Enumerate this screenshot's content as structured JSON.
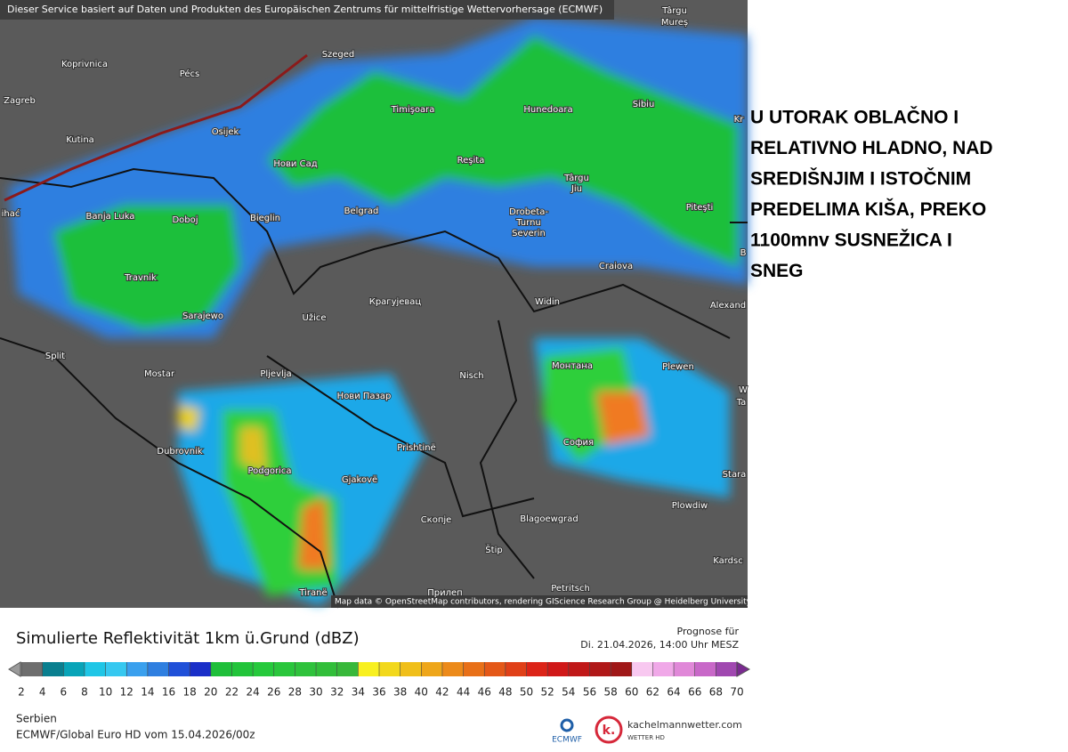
{
  "header": {
    "attribution": "Dieser Service basiert auf Daten und Produkten des Europäischen Zentrums für mittelfristige Wettervorhersage (ECMWF)"
  },
  "map": {
    "credit": "Map data © OpenStreetMap contributors, rendering GIScience Research Group @ Heidelberg University",
    "labels": [
      "Koprivnica",
      "Pécs",
      "Szeged",
      "Târgu",
      "Mureș",
      "Zagreb",
      "Kutina",
      "Osijek",
      "Нови Сад",
      "Timişoara",
      "Hunedoara",
      "Sibiu",
      "Kr",
      "Reşita",
      "Târgu",
      "Jiu",
      "Piteşti",
      "ihać",
      "Banja Luka",
      "Doboj",
      "Bieglin",
      "Belgrad",
      "Drobeta-",
      "Turnu",
      "Severin",
      "Craiova",
      "B",
      "Travnik",
      "Sarajewo",
      "Užice",
      "Крагујевац",
      "Widin",
      "Alexand",
      "Split",
      "Mostar",
      "Pljevlja",
      "Nisch",
      "Монтана",
      "Plewen",
      "W",
      "Ta",
      "Нови Пазар",
      "Dubrovnik",
      "Prishtinë",
      "София",
      "Stara",
      "Podgorica",
      "Gjakovë",
      "Plowdiw",
      "Скопје",
      "Blagoewgrad",
      "Štip",
      "Kardsc",
      "Tiranë",
      "Прилеп",
      "Petritsch"
    ]
  },
  "caption": {
    "lines": [
      "U UTORAK OBLAČNO I",
      "RELATIVNO HLADNO, NAD",
      "SREDIŠNJIM I ISTOČNIM",
      "PREDELIMA KIŠA, PREKO",
      "1100mnv SUSNEŽICA I",
      "SNEG"
    ]
  },
  "legend": {
    "title": "Simulierte Reflektivität 1km ü.Grund (dBZ)",
    "forecast_label": "Prognose für",
    "forecast_time": "Di. 21.04.2026, 14:00 Uhr MESZ",
    "scale": [
      2,
      4,
      6,
      8,
      10,
      12,
      14,
      16,
      18,
      20,
      22,
      24,
      26,
      28,
      30,
      32,
      34,
      36,
      38,
      40,
      42,
      44,
      46,
      48,
      50,
      52,
      54,
      56,
      58,
      60,
      62,
      64,
      66,
      68,
      70
    ],
    "region": "Serbien",
    "model": "ECMWF/Global Euro HD vom  15.04.2026/00z",
    "logo_ecmwf": "ECMWF",
    "logo_site": "kachelmannwetter.com",
    "logo_sub": "WETTER HD"
  }
}
